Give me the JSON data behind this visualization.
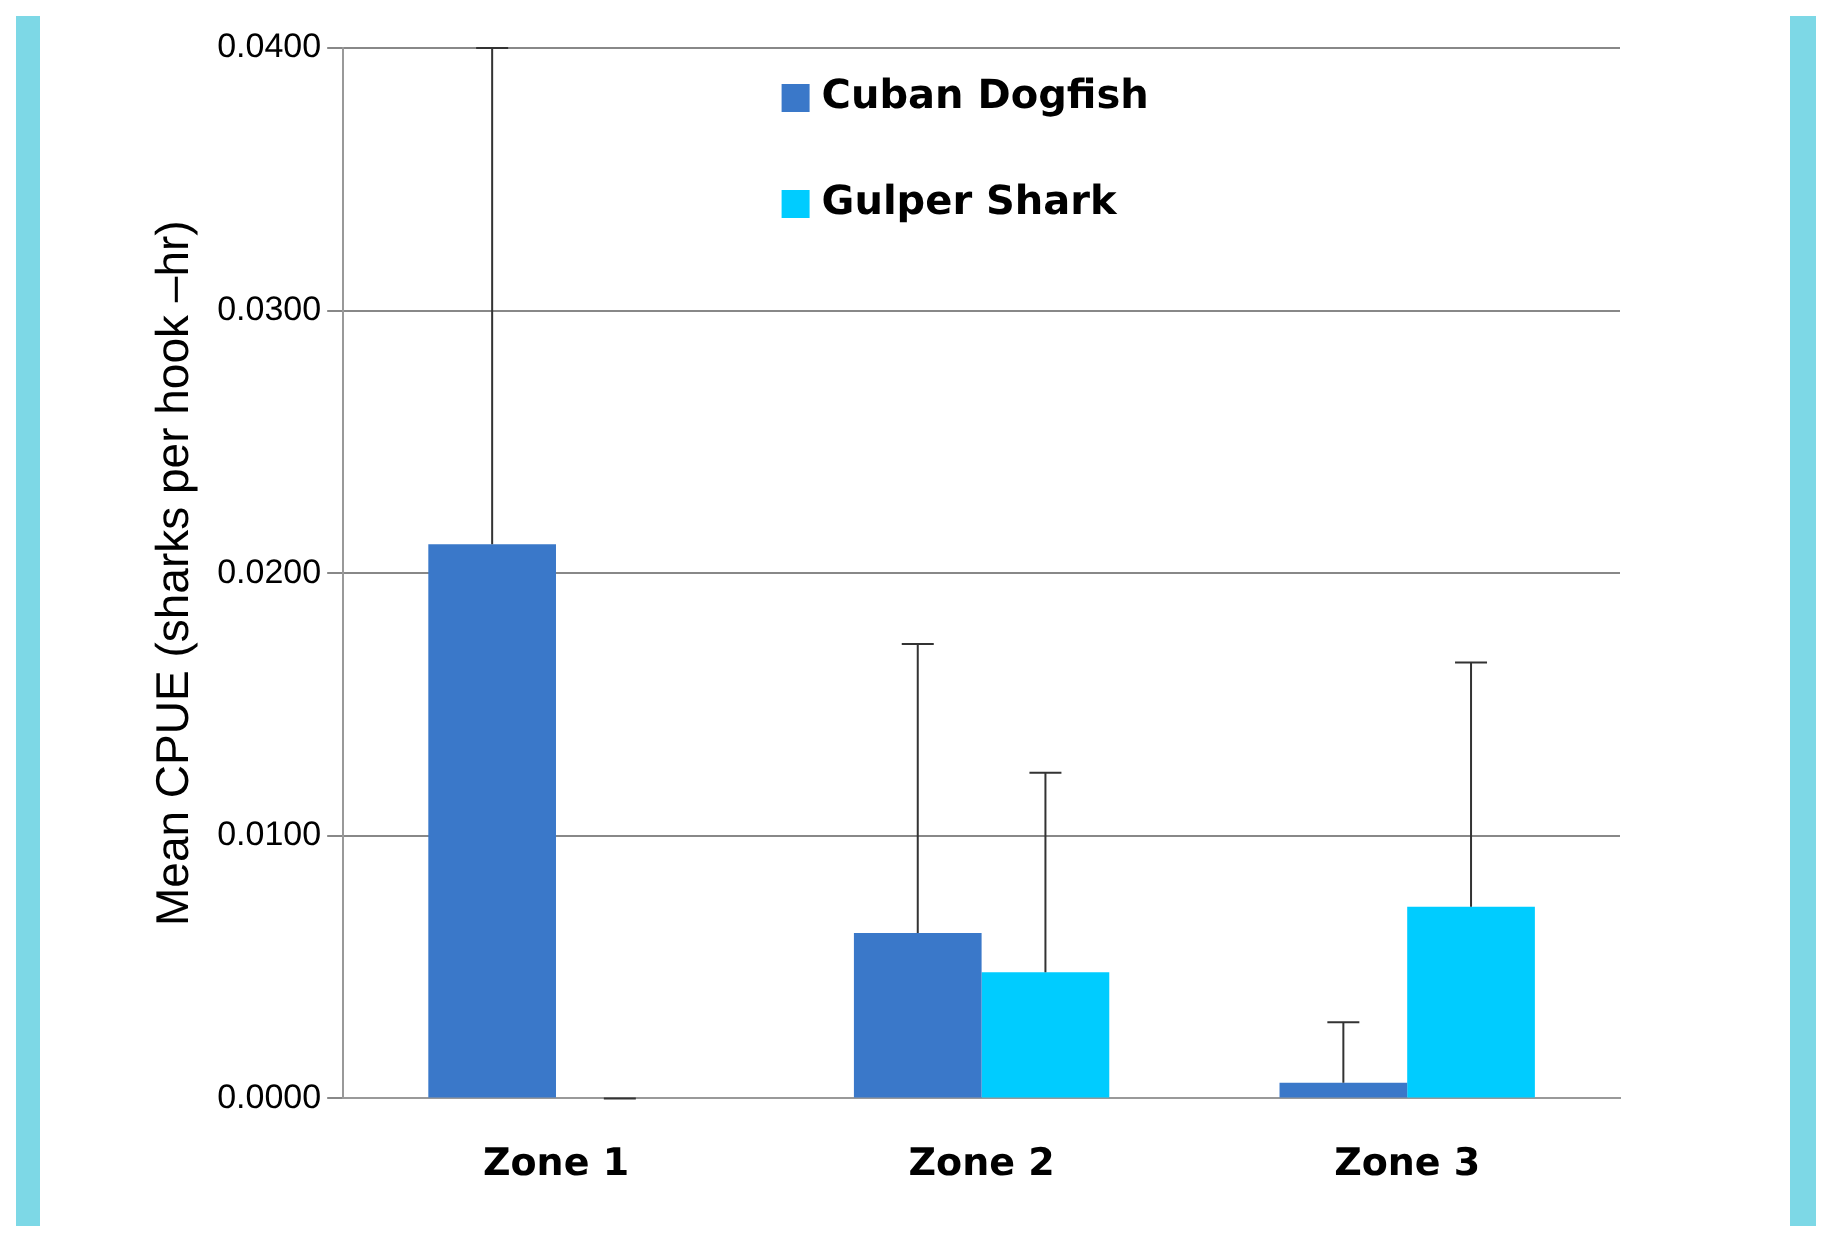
{
  "chart_data": {
    "type": "bar",
    "ylabel": "Mean CPUE (sharks per hook –hr)",
    "categories": [
      "Zone 1",
      "Zone 2",
      "Zone 3"
    ],
    "series": [
      {
        "name": "Cuban Dogfish",
        "color": "#3a78c9",
        "values": [
          0.0211,
          0.0063,
          0.0006
        ],
        "errors": [
          [
            0.0211,
            0.04
          ],
          [
            0.0063,
            0.0173
          ],
          [
            0.0006,
            0.0029
          ]
        ]
      },
      {
        "name": "Gulper Shark",
        "color": "#00ccff",
        "values": [
          0,
          0.0048,
          0.0073
        ],
        "errors": [
          [
            0,
            0
          ],
          [
            0.0048,
            0.0124
          ],
          [
            0.0073,
            0.0166
          ]
        ]
      }
    ],
    "ylim": [
      0,
      0.04
    ],
    "yticks": [
      {
        "value": 0,
        "label": "0.0000"
      },
      {
        "value": 0.01,
        "label": "0.0100"
      },
      {
        "value": 0.02,
        "label": "0.0200"
      },
      {
        "value": 0.03,
        "label": "0.0300"
      },
      {
        "value": 0.04,
        "label": "0.0400"
      }
    ],
    "grid": "y",
    "legend": "top"
  }
}
